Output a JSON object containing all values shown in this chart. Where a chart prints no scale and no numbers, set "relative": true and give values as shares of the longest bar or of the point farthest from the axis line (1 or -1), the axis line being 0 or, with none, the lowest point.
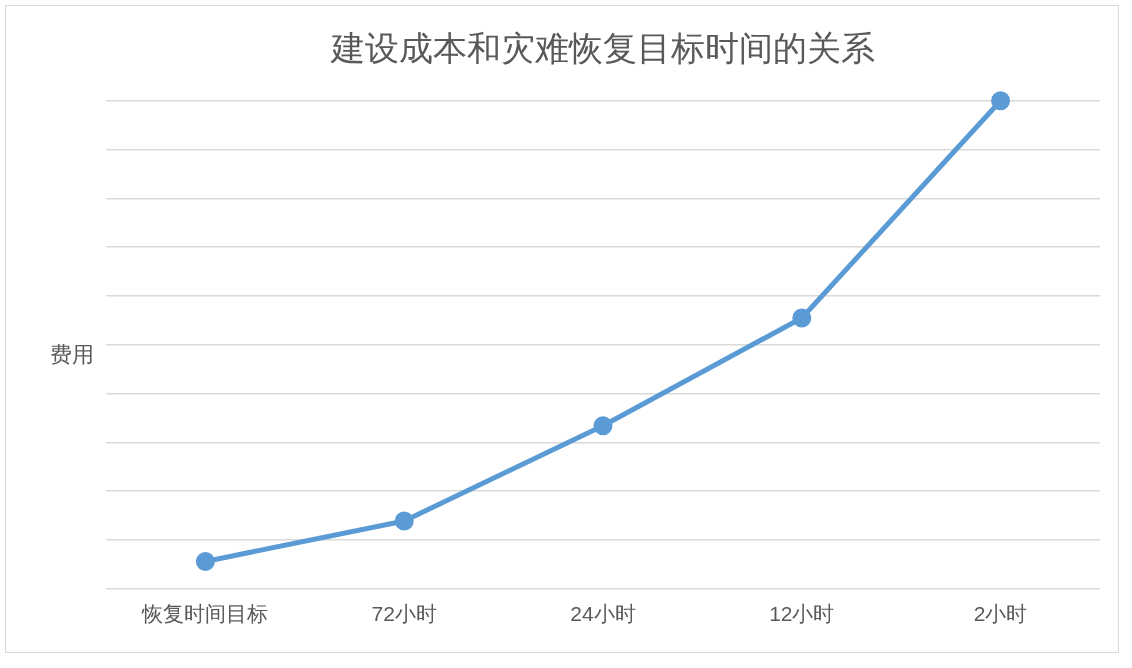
{
  "chart_data": {
    "type": "line",
    "title": "建设成本和灾难恢复目标时间的关系",
    "ylabel": "费用",
    "relative": true,
    "categories": [
      "恢复时间目标",
      "72小时",
      "24小时",
      "12小时",
      "2小时"
    ],
    "series": [
      {
        "color": "#5b9bd5",
        "values": [
          0.056,
          0.139,
          0.334,
          0.555,
          1
        ]
      }
    ],
    "grid": "y",
    "marker": "circle",
    "line_style": "solid",
    "legend": false
  }
}
